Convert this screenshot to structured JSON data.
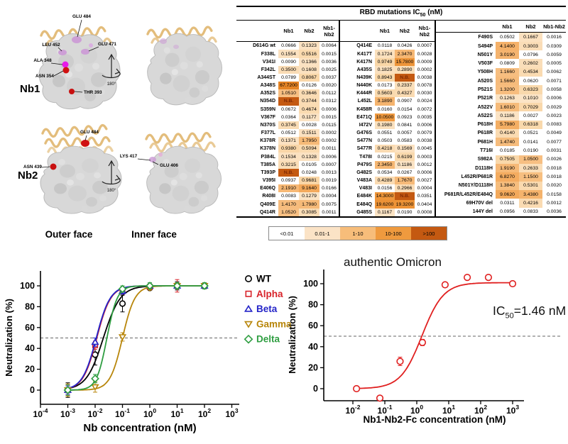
{
  "structures": {
    "nb1_tag": "Nb1",
    "nb2_tag": "Nb2",
    "rotate_caption": "180°",
    "outer_caption": "Outer face",
    "inner_caption": "Inner face",
    "nb1_outer_labels": {
      "l1": "GLU 484",
      "l2": "GLU 471",
      "l3": "LEU 452",
      "l4": "ALA 348",
      "l5": "ASN 354",
      "l6": "THR 393"
    },
    "nb2_outer_labels": {
      "l1": "GLU 484",
      "l2": "ASN 439"
    },
    "nb2_inner_labels": {
      "l1": "LYS 417",
      "l2": "GLU 406"
    },
    "colors": {
      "ribbon": "#e3bd7c",
      "surface": "#d8d8d8",
      "violet": "#cd9fd6",
      "magenta": "#e81ae8",
      "red": "#d01111"
    }
  },
  "table": {
    "title_prefix": "RBD mutations IC",
    "title_sub": "50",
    "title_suffix": " (nM)",
    "col_headers": [
      "Nb1",
      "Nb2",
      "Nb1-Nb2"
    ],
    "groups": [
      {
        "rows": [
          {
            "m": "D614G wt",
            "v": [
              "0.0666",
              "0.1323",
              "0.0064"
            ]
          },
          {
            "m": "F338L",
            "v": [
              "0.1554",
              "0.5516",
              "0.0015"
            ]
          },
          {
            "m": "V341I",
            "v": [
              "0.0090",
              "0.1366",
              "0.0036"
            ]
          },
          {
            "m": "F342L",
            "v": [
              "0.3500",
              "0.1608",
              "0.0025"
            ]
          },
          {
            "m": "A344ST",
            "v": [
              "0.0789",
              "0.8067",
              "0.0037"
            ]
          },
          {
            "m": "A348S",
            "v": [
              "67.7200",
              "0.0126",
              "0.0020"
            ]
          },
          {
            "m": "A352S",
            "v": [
              "1.0510",
              "0.3646",
              "0.0112"
            ]
          },
          {
            "m": "N354D",
            "v": [
              "N.B.",
              "0.3744",
              "0.0312"
            ]
          },
          {
            "m": "S359N",
            "v": [
              "0.0672",
              "0.4674",
              "0.0006"
            ]
          },
          {
            "m": "V367F",
            "v": [
              "0.0364",
              "0.1177",
              "0.0015"
            ]
          },
          {
            "m": "N370S",
            "v": [
              "0.3745",
              "0.0028",
              "0.0115"
            ]
          },
          {
            "m": "F377L",
            "v": [
              "0.0512",
              "0.1511",
              "0.0002"
            ]
          },
          {
            "m": "K378R",
            "v": [
              "0.1371",
              "1.7950",
              "0.0002"
            ]
          },
          {
            "m": "K378N",
            "v": [
              "0.9380",
              "0.5094",
              "0.0011"
            ]
          },
          {
            "m": "P384L",
            "v": [
              "0.1534",
              "0.1328",
              "0.0006"
            ]
          },
          {
            "m": "T385A",
            "v": [
              "0.3215",
              "0.0105",
              "0.0007"
            ]
          },
          {
            "m": "T393P",
            "v": [
              "N.B.",
              "0.0248",
              "0.0013"
            ]
          },
          {
            "m": "V395I",
            "v": [
              "0.0937",
              "0.9681",
              "0.0019"
            ]
          },
          {
            "m": "E406Q",
            "v": [
              "2.1910",
              "9.1640",
              "0.0166"
            ]
          },
          {
            "m": "R408I",
            "v": [
              "0.0083",
              "0.1279",
              "0.0004"
            ]
          },
          {
            "m": "Q409E",
            "v": [
              "1.4170",
              "1.7980",
              "0.0075"
            ]
          },
          {
            "m": "Q414R",
            "v": [
              "1.0520",
              "0.3085",
              "0.0011"
            ]
          }
        ]
      },
      {
        "rows": [
          {
            "m": "Q414E",
            "v": [
              "0.0118",
              "0.0426",
              "0.0007"
            ]
          },
          {
            "m": "K417T",
            "v": [
              "0.1724",
              "2.3470",
              "0.0028"
            ]
          },
          {
            "m": "K417N",
            "v": [
              "0.9749",
              "15.7800",
              "0.0009"
            ]
          },
          {
            "m": "A435S",
            "v": [
              "0.1825",
              "0.2890",
              "0.0002"
            ]
          },
          {
            "m": "N439K",
            "v": [
              "0.8943",
              "N.B.",
              "0.0038"
            ]
          },
          {
            "m": "N440K",
            "v": [
              "0.0173",
              "0.2337",
              "0.0078"
            ]
          },
          {
            "m": "K444R",
            "v": [
              "0.5603",
              "0.4327",
              "0.0030"
            ]
          },
          {
            "m": "L452L",
            "v": [
              "3.1890",
              "0.0907",
              "0.0024"
            ]
          },
          {
            "m": "K458R",
            "v": [
              "0.0160",
              "0.0154",
              "0.0072"
            ]
          },
          {
            "m": "E471Q",
            "v": [
              "10.0500",
              "0.0923",
              "0.0035"
            ]
          },
          {
            "m": "I472V",
            "v": [
              "0.1980",
              "0.0841",
              "0.0006"
            ]
          },
          {
            "m": "G476S",
            "v": [
              "0.0551",
              "0.0057",
              "0.0079"
            ]
          },
          {
            "m": "S477N",
            "v": [
              "0.0503",
              "0.0583",
              "0.0038"
            ]
          },
          {
            "m": "S477R",
            "v": [
              "0.4218",
              "0.1569",
              "0.0045"
            ]
          },
          {
            "m": "T478I",
            "v": [
              "0.0215",
              "0.6199",
              "0.0003"
            ]
          },
          {
            "m": "P479S",
            "v": [
              "2.3450",
              "0.1186",
              "0.0012"
            ]
          },
          {
            "m": "G482S",
            "v": [
              "0.0534",
              "0.0267",
              "0.0006"
            ]
          },
          {
            "m": "V483A",
            "v": [
              "0.4289",
              "1.7670",
              "0.0027"
            ]
          },
          {
            "m": "V483I",
            "v": [
              "0.0156",
              "0.2966",
              "0.0004"
            ]
          },
          {
            "m": "E484K",
            "v": [
              "14.3000",
              "N.B.",
              "0.0351"
            ]
          },
          {
            "m": "E484Q",
            "v": [
              "19.6200",
              "19.3200",
              "0.0404"
            ]
          },
          {
            "m": "G485S",
            "v": [
              "0.1167",
              "0.0190",
              "0.0008"
            ]
          }
        ]
      },
      {
        "rows": [
          {
            "m": "F490S",
            "v": [
              "0.0502",
              "0.1667",
              "0.0016"
            ]
          },
          {
            "m": "S494P",
            "v": [
              "4.1400",
              "0.3003",
              "0.0309"
            ]
          },
          {
            "m": "N501Y",
            "v": [
              "3.0190",
              "0.0796",
              "0.0059"
            ]
          },
          {
            "m": "V503F",
            "v": [
              "0.0809",
              "0.2602",
              "0.0005"
            ]
          },
          {
            "m": "Y508H",
            "v": [
              "1.1660",
              "0.4534",
              "0.0062"
            ]
          },
          {
            "m": "A520S",
            "v": [
              "1.5660",
              "0.0620",
              "0.0071"
            ]
          },
          {
            "m": "P521S",
            "v": [
              "1.3200",
              "0.6323",
              "0.0058"
            ]
          },
          {
            "m": "P521R",
            "v": [
              "0.1263",
              "0.1010",
              "0.0006"
            ]
          },
          {
            "m": "A522V",
            "v": [
              "1.6010",
              "0.7029",
              "0.0029"
            ]
          },
          {
            "m": "A522S",
            "v": [
              "0.1186",
              "0.0027",
              "0.0023"
            ]
          },
          {
            "m": "P618H",
            "v": [
              "5.7980",
              "0.6318",
              "0.0083"
            ]
          },
          {
            "m": "P618R",
            "v": [
              "0.4140",
              "0.0521",
              "0.0049"
            ]
          },
          {
            "m": "P681H",
            "v": [
              "1.4740",
              "0.0141",
              "0.0077"
            ]
          },
          {
            "m": "T716I",
            "v": [
              "0.0185",
              "0.0190",
              "0.0031"
            ]
          },
          {
            "m": "S982A",
            "v": [
              "0.7505",
              "1.0500",
              "0.0026"
            ]
          },
          {
            "m": "D1118H",
            "v": [
              "1.9190",
              "0.2633",
              "0.0018"
            ]
          },
          {
            "m": "L452R/P681R",
            "v": [
              "6.8270",
              "1.1500",
              "0.0018"
            ]
          },
          {
            "m": "N501Y/D1118H",
            "v": [
              "1.3840",
              "0.5301",
              "0.0020"
            ]
          },
          {
            "m": "P681R/L452R/E484Q",
            "v": [
              "9.0620",
              "3.4380",
              "0.0158"
            ]
          },
          {
            "m": "69H70V del",
            "v": [
              "0.0311",
              "0.4216",
              "0.0012"
            ]
          },
          {
            "m": "144Y del",
            "v": [
              "0.0956",
              "0.0833",
              "0.0036"
            ]
          }
        ]
      }
    ],
    "legend": [
      {
        "label": "<0.01",
        "color": "#ffffff"
      },
      {
        "label": "0.01-1",
        "color": "#fbe3c6"
      },
      {
        "label": "1-10",
        "color": "#f7bd7a"
      },
      {
        "label": "10-100",
        "color": "#ef9a3e"
      },
      {
        "label": ">100",
        "color": "#c45911"
      }
    ]
  },
  "chart_data": [
    {
      "type": "line",
      "title": "",
      "xlabel": "Nb concentration (nM)",
      "ylabel": "Neutralization (%)",
      "x_exponent_ticks": [
        -4,
        -3,
        -2,
        -1,
        0,
        1,
        2,
        3
      ],
      "yticks": [
        0,
        20,
        40,
        60,
        80,
        100
      ],
      "ylim": [
        -14,
        114
      ],
      "dashed_y": 50,
      "legend_position": "right",
      "grid": false,
      "x": [
        0.001,
        0.01,
        0.1,
        1,
        10,
        100
      ],
      "series": [
        {
          "name": "WT",
          "color": "#000000",
          "marker": "circle",
          "y": [
            0,
            34,
            83,
            98,
            100,
            100
          ],
          "err": [
            7,
            10,
            8,
            2,
            4,
            3
          ],
          "ec50": 0.02,
          "hill": 1.4
        },
        {
          "name": "Alpha",
          "color": "#d8232a",
          "marker": "square",
          "y": [
            0,
            43,
            95,
            99,
            100,
            100
          ],
          "err": [
            5,
            4,
            3,
            2,
            6,
            3
          ],
          "ec50": 0.0115,
          "hill": 1.7
        },
        {
          "name": "Beta",
          "color": "#2424c8",
          "marker": "triangle",
          "y": [
            0,
            46,
            95,
            100,
            100,
            100
          ],
          "err": [
            4,
            4,
            3,
            2,
            3,
            3
          ],
          "ec50": 0.011,
          "hill": 1.7
        },
        {
          "name": "Gamma",
          "color": "#b8860b",
          "marker": "triangle-down",
          "y": [
            0,
            3,
            51,
            98,
            100,
            100
          ],
          "err": [
            6,
            5,
            4,
            2,
            3,
            3
          ],
          "ec50": 0.1,
          "hill": 1.9
        },
        {
          "name": "Delta",
          "color": "#2f9e41",
          "marker": "diamond",
          "y": [
            0,
            11,
            97,
            100,
            100,
            100
          ],
          "err": [
            5,
            4,
            3,
            3,
            3,
            3
          ],
          "ec50": 0.027,
          "hill": 2.3
        }
      ]
    },
    {
      "type": "scatter",
      "title": "authentic Omicron",
      "xlabel": "Nb1-Nb2-Fc concentration (nM)",
      "ylabel": "Neutralization (%)",
      "x_exponent_ticks": [
        -2,
        -1,
        0,
        1,
        2,
        3
      ],
      "yticks": [
        0,
        20,
        40,
        60,
        80,
        100
      ],
      "ylim": [
        -14,
        114
      ],
      "dashed_y": 50,
      "grid": false,
      "annotation": {
        "prefix": "IC",
        "sub": "50",
        "suffix": "=1.46 nM"
      },
      "series": [
        {
          "name": "authentic Omicron",
          "color": "#e02020",
          "marker": "circle",
          "x": [
            0.013,
            0.07,
            0.3,
            1.5,
            7.7,
            38,
            175,
            1000
          ],
          "y": [
            0,
            -9,
            26,
            44,
            99,
            106,
            106,
            100
          ],
          "err": [
            1,
            1,
            4,
            3,
            2,
            1,
            1,
            2
          ],
          "ec50": 1.46,
          "hill": 1.3,
          "top": 101
        }
      ]
    }
  ]
}
